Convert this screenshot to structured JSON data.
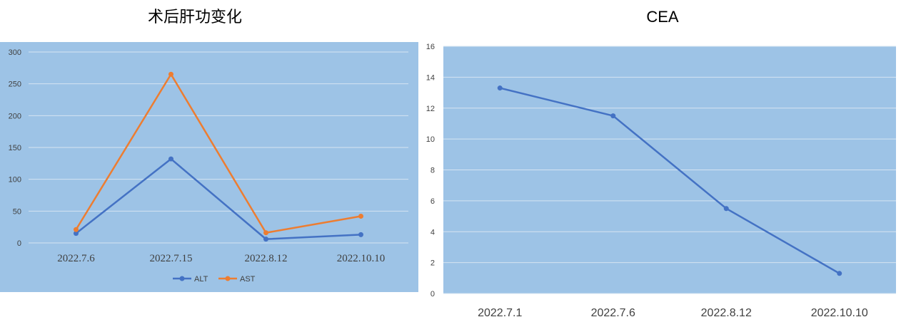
{
  "chart_data": [
    {
      "type": "line",
      "title": "术后肝功变化",
      "categories": [
        "2022.7.6",
        "2022.7.15",
        "2022.8.12",
        "2022.10.10"
      ],
      "series": [
        {
          "name": "ALT",
          "values": [
            15,
            132,
            6,
            13
          ],
          "color": "#4472C4"
        },
        {
          "name": "AST",
          "values": [
            21,
            265,
            16,
            42
          ],
          "color": "#ED7D31"
        }
      ],
      "ylim": [
        0,
        300
      ],
      "yticks": [
        0,
        50,
        100,
        150,
        200,
        250,
        300
      ],
      "grid": true,
      "legend": "bottom",
      "plot_background": "#9DC3E6"
    },
    {
      "type": "line",
      "title": "CEA",
      "categories": [
        "2022.7.1",
        "2022.7.6",
        "2022.8.12",
        "2022.10.10"
      ],
      "series": [
        {
          "values": [
            13.3,
            11.5,
            5.5,
            1.3
          ],
          "color": "#4472C4"
        }
      ],
      "ylim": [
        0,
        16
      ],
      "yticks": [
        0,
        2,
        4,
        6,
        8,
        10,
        12,
        14,
        16
      ],
      "grid": true,
      "legend": "none",
      "plot_background": "#9DC3E6"
    }
  ]
}
